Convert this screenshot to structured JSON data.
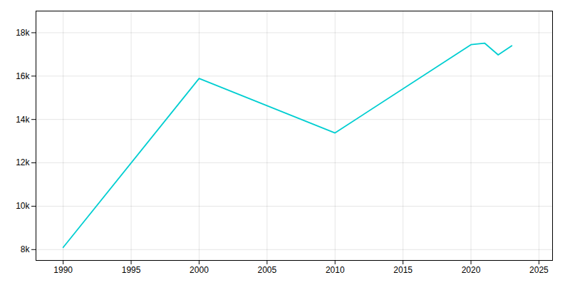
{
  "chart_data": {
    "type": "line",
    "x": [
      1990,
      2000,
      2010,
      2020,
      2021,
      2022,
      2023
    ],
    "values": [
      8100,
      15890,
      13380,
      17450,
      17520,
      16980,
      17400
    ],
    "color": "#00CED1",
    "xlim": [
      1988,
      2026
    ],
    "xticks": [
      1990,
      1995,
      2000,
      2005,
      2010,
      2015,
      2020,
      2025
    ],
    "ylim": [
      7500,
      19000
    ],
    "yticks": [
      {
        "value": 8000,
        "label": "8k"
      },
      {
        "value": 10000,
        "label": "10k"
      },
      {
        "value": 12000,
        "label": "12k"
      },
      {
        "value": 14000,
        "label": "14k"
      },
      {
        "value": 16000,
        "label": "16k"
      },
      {
        "value": 18000,
        "label": "18k"
      }
    ],
    "grid": true
  }
}
